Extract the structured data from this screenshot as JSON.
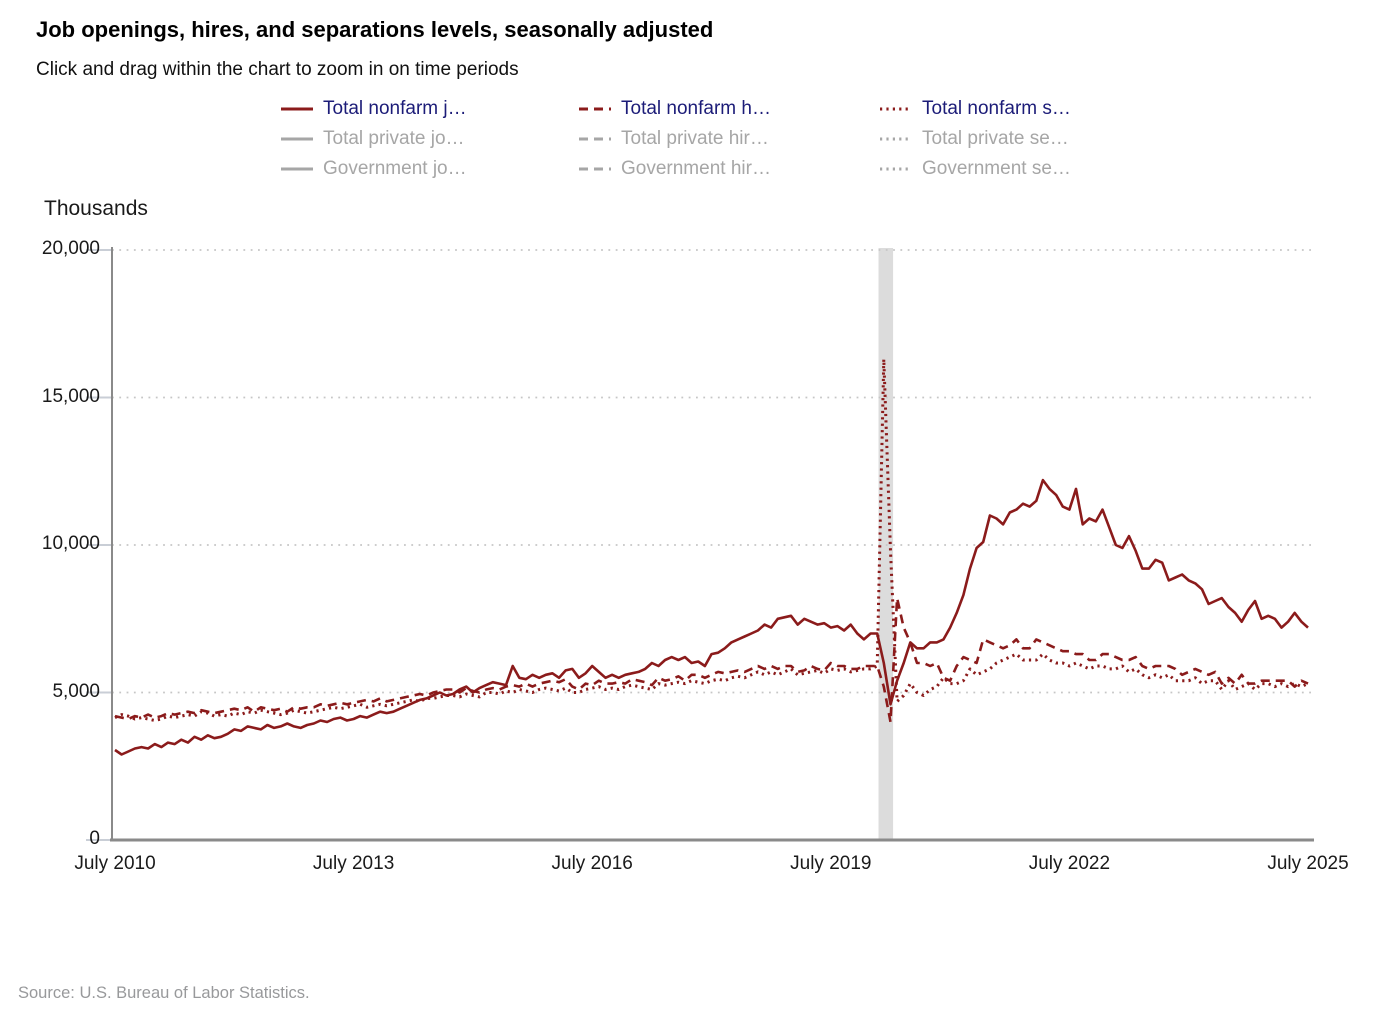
{
  "header": {
    "title": "Job openings, hires, and separations levels, seasonally adjusted",
    "subtitle": "Click and drag within the chart to zoom in on time periods"
  },
  "source": "Source: U.S. Bureau of Labor Statistics.",
  "colors": {
    "series_line": "#8b1b1b",
    "legend_active_text": "#1c1c78",
    "legend_inactive": "#a6a6a6",
    "grid": "#c6c6c6",
    "axis": "#8a8a8a",
    "tick_mark": "#c9ced6",
    "recession_band": "#dcdcdc"
  },
  "legend": {
    "rows": [
      [
        {
          "label": "Total nonfarm j…",
          "style": "solid",
          "active": true
        },
        {
          "label": "Total nonfarm h…",
          "style": "dashed",
          "active": true
        },
        {
          "label": "Total nonfarm s…",
          "style": "dotted",
          "active": true
        }
      ],
      [
        {
          "label": "Total private jo…",
          "style": "solid",
          "active": false
        },
        {
          "label": "Total private hir…",
          "style": "dashed",
          "active": false
        },
        {
          "label": "Total private se…",
          "style": "dotted",
          "active": false
        }
      ],
      [
        {
          "label": "Government jo…",
          "style": "solid",
          "active": false
        },
        {
          "label": "Government hir…",
          "style": "dashed",
          "active": false
        },
        {
          "label": "Government se…",
          "style": "dotted",
          "active": false
        }
      ]
    ]
  },
  "chart_data": {
    "type": "line",
    "title": "Job openings, hires, and separations levels, seasonally adjusted",
    "ylabel": "Thousands",
    "ylim": [
      0,
      20000
    ],
    "grid": "dotted-horizontal",
    "y_ticks": [
      0,
      5000,
      10000,
      15000,
      20000
    ],
    "y_tick_labels": [
      "0",
      "5,000",
      "10,000",
      "15,000",
      "20,000"
    ],
    "x_start_label": "July 2010",
    "months_total": 180,
    "x_ticks_months": [
      0,
      36,
      72,
      108,
      144,
      180
    ],
    "x_tick_labels": [
      "July 2010",
      "July 2013",
      "July 2016",
      "July 2019",
      "July 2022",
      "July 2025"
    ],
    "recession_band_months": {
      "from": 115.2,
      "to": 117.4,
      "note": "shaded vertical band early 2020"
    },
    "series": [
      {
        "name": "Total nonfarm job openings",
        "style": "solid",
        "values": [
          3050,
          2900,
          3000,
          3100,
          3150,
          3100,
          3250,
          3150,
          3300,
          3250,
          3400,
          3300,
          3500,
          3400,
          3550,
          3450,
          3500,
          3600,
          3750,
          3700,
          3850,
          3800,
          3750,
          3900,
          3800,
          3850,
          3950,
          3850,
          3800,
          3900,
          3950,
          4050,
          4000,
          4100,
          4150,
          4050,
          4100,
          4200,
          4150,
          4250,
          4350,
          4300,
          4350,
          4450,
          4550,
          4650,
          4750,
          4800,
          4900,
          5000,
          4900,
          4950,
          5100,
          5200,
          5000,
          5150,
          5250,
          5350,
          5300,
          5250,
          5900,
          5500,
          5450,
          5600,
          5500,
          5600,
          5650,
          5500,
          5750,
          5800,
          5500,
          5650,
          5900,
          5700,
          5500,
          5600,
          5500,
          5600,
          5650,
          5700,
          5800,
          6000,
          5900,
          6100,
          6200,
          6100,
          6200,
          6000,
          6050,
          5900,
          6300,
          6350,
          6500,
          6700,
          6800,
          6900,
          7000,
          7100,
          7300,
          7200,
          7500,
          7550,
          7600,
          7300,
          7500,
          7400,
          7300,
          7350,
          7200,
          7250,
          7100,
          7300,
          7000,
          6800,
          7000,
          7000,
          6000,
          4600,
          5400,
          6000,
          6700,
          6500,
          6500,
          6700,
          6700,
          6800,
          7200,
          7700,
          8300,
          9200,
          9900,
          10100,
          11000,
          10900,
          10700,
          11100,
          11200,
          11400,
          11300,
          11500,
          12200,
          11900,
          11700,
          11300,
          11200,
          11900,
          10700,
          10900,
          10800,
          11200,
          10600,
          10000,
          9900,
          10300,
          9800,
          9200,
          9200,
          9500,
          9400,
          8800,
          8900,
          9000,
          8800,
          8700,
          8500,
          8000,
          8100,
          8200,
          7900,
          7700,
          7400,
          7800,
          8100,
          7500,
          7600,
          7500,
          7200,
          7400,
          7700,
          7400,
          7200
        ]
      },
      {
        "name": "Total nonfarm hires",
        "style": "dashed",
        "values": [
          4200,
          4150,
          4100,
          4200,
          4150,
          4250,
          4150,
          4200,
          4300,
          4250,
          4300,
          4350,
          4300,
          4400,
          4350,
          4300,
          4350,
          4400,
          4450,
          4400,
          4500,
          4350,
          4500,
          4450,
          4400,
          4450,
          4350,
          4500,
          4450,
          4500,
          4500,
          4600,
          4550,
          4600,
          4650,
          4600,
          4650,
          4700,
          4750,
          4700,
          4800,
          4700,
          4750,
          4800,
          4850,
          4900,
          4950,
          4900,
          5000,
          5050,
          5100,
          5100,
          5000,
          5150,
          5050,
          5000,
          5100,
          5150,
          5100,
          5200,
          5250,
          5200,
          5300,
          5200,
          5300,
          5350,
          5400,
          5350,
          5450,
          5200,
          5100,
          5300,
          5250,
          5400,
          5300,
          5300,
          5350,
          5300,
          5450,
          5400,
          5350,
          5250,
          5500,
          5400,
          5450,
          5550,
          5400,
          5600,
          5600,
          5500,
          5600,
          5700,
          5650,
          5700,
          5750,
          5700,
          5800,
          5900,
          5800,
          5900,
          5800,
          5900,
          5900,
          5700,
          5750,
          5900,
          5800,
          5750,
          6000,
          5900,
          5900,
          5800,
          5800,
          5900,
          5900,
          5900,
          5200,
          4000,
          8200,
          7200,
          6700,
          6000,
          6000,
          5900,
          6000,
          5500,
          5400,
          5900,
          6200,
          6100,
          6000,
          6800,
          6700,
          6600,
          6500,
          6600,
          6800,
          6500,
          6500,
          6800,
          6700,
          6600,
          6500,
          6400,
          6400,
          6300,
          6300,
          6100,
          6100,
          6300,
          6300,
          6200,
          6100,
          6100,
          6200,
          5900,
          5800,
          5900,
          5900,
          5900,
          5800,
          5600,
          5700,
          5800,
          5700,
          5600,
          5700,
          5300,
          5500,
          5300,
          5600,
          5300,
          5300,
          5400,
          5400,
          5400,
          5400,
          5400,
          5200,
          5400,
          5300
        ]
      },
      {
        "name": "Total nonfarm separations",
        "style": "dotted",
        "values": [
          4150,
          4250,
          4200,
          4100,
          4150,
          4100,
          4050,
          4100,
          4200,
          4150,
          4200,
          4250,
          4200,
          4350,
          4300,
          4200,
          4250,
          4200,
          4300,
          4250,
          4350,
          4300,
          4400,
          4350,
          4300,
          4250,
          4300,
          4400,
          4350,
          4300,
          4350,
          4400,
          4450,
          4500,
          4450,
          4500,
          4550,
          4600,
          4500,
          4550,
          4600,
          4550,
          4600,
          4650,
          4700,
          4750,
          4700,
          4800,
          4800,
          4850,
          4900,
          4900,
          4850,
          4950,
          4900,
          4850,
          5000,
          5000,
          4950,
          5050,
          5000,
          5100,
          5050,
          5000,
          5100,
          5150,
          5100,
          5050,
          5150,
          5000,
          5000,
          5100,
          5150,
          5200,
          5100,
          5150,
          5100,
          5200,
          5250,
          5200,
          5150,
          5100,
          5300,
          5250,
          5300,
          5350,
          5300,
          5400,
          5350,
          5300,
          5400,
          5450,
          5400,
          5500,
          5550,
          5500,
          5600,
          5700,
          5600,
          5700,
          5600,
          5700,
          5800,
          5600,
          5650,
          5700,
          5750,
          5650,
          5800,
          5750,
          5800,
          5700,
          5750,
          5800,
          5800,
          5900,
          16300,
          9800,
          4700,
          4900,
          5300,
          5000,
          4900,
          5100,
          5200,
          5500,
          5300,
          5300,
          5400,
          5800,
          5600,
          5700,
          5800,
          6000,
          6100,
          6200,
          6300,
          6100,
          6100,
          6100,
          6300,
          6100,
          6000,
          6000,
          5900,
          6000,
          5900,
          5800,
          5900,
          5900,
          5800,
          5800,
          5900,
          5700,
          5800,
          5600,
          5500,
          5600,
          5500,
          5600,
          5400,
          5400,
          5400,
          5500,
          5300,
          5400,
          5400,
          5100,
          5400,
          5100,
          5200,
          5300,
          5100,
          5300,
          5300,
          5200,
          5300,
          5200,
          5300,
          5200,
          5300
        ]
      }
    ]
  }
}
